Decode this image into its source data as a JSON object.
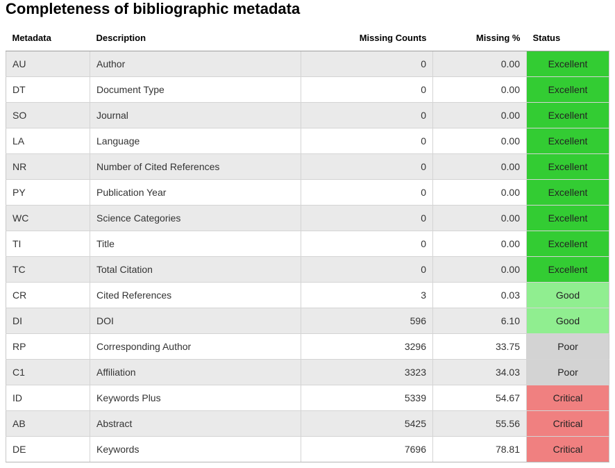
{
  "title": "Completeness of bibliographic metadata",
  "columns": {
    "metadata": "Metadata",
    "description": "Description",
    "missing_counts": "Missing Counts",
    "missing_pct": "Missing %",
    "status": "Status"
  },
  "status_colors": {
    "Excellent": "#33cc33",
    "Good": "#90ee90",
    "Poor": "#d3d3d3",
    "Critical": "#f08080"
  },
  "rows": [
    {
      "tag": "AU",
      "description": "Author",
      "missing_counts": "0",
      "missing_pct": "0.00",
      "status": "Excellent"
    },
    {
      "tag": "DT",
      "description": "Document Type",
      "missing_counts": "0",
      "missing_pct": "0.00",
      "status": "Excellent"
    },
    {
      "tag": "SO",
      "description": "Journal",
      "missing_counts": "0",
      "missing_pct": "0.00",
      "status": "Excellent"
    },
    {
      "tag": "LA",
      "description": "Language",
      "missing_counts": "0",
      "missing_pct": "0.00",
      "status": "Excellent"
    },
    {
      "tag": "NR",
      "description": "Number of Cited References",
      "missing_counts": "0",
      "missing_pct": "0.00",
      "status": "Excellent"
    },
    {
      "tag": "PY",
      "description": "Publication Year",
      "missing_counts": "0",
      "missing_pct": "0.00",
      "status": "Excellent"
    },
    {
      "tag": "WC",
      "description": "Science Categories",
      "missing_counts": "0",
      "missing_pct": "0.00",
      "status": "Excellent"
    },
    {
      "tag": "TI",
      "description": "Title",
      "missing_counts": "0",
      "missing_pct": "0.00",
      "status": "Excellent"
    },
    {
      "tag": "TC",
      "description": "Total Citation",
      "missing_counts": "0",
      "missing_pct": "0.00",
      "status": "Excellent"
    },
    {
      "tag": "CR",
      "description": "Cited References",
      "missing_counts": "3",
      "missing_pct": "0.03",
      "status": "Good"
    },
    {
      "tag": "DI",
      "description": "DOI",
      "missing_counts": "596",
      "missing_pct": "6.10",
      "status": "Good"
    },
    {
      "tag": "RP",
      "description": "Corresponding Author",
      "missing_counts": "3296",
      "missing_pct": "33.75",
      "status": "Poor"
    },
    {
      "tag": "C1",
      "description": "Affiliation",
      "missing_counts": "3323",
      "missing_pct": "34.03",
      "status": "Poor"
    },
    {
      "tag": "ID",
      "description": "Keywords Plus",
      "missing_counts": "5339",
      "missing_pct": "54.67",
      "status": "Critical"
    },
    {
      "tag": "AB",
      "description": "Abstract",
      "missing_counts": "5425",
      "missing_pct": "55.56",
      "status": "Critical"
    },
    {
      "tag": "DE",
      "description": "Keywords",
      "missing_counts": "7696",
      "missing_pct": "78.81",
      "status": "Critical"
    }
  ]
}
